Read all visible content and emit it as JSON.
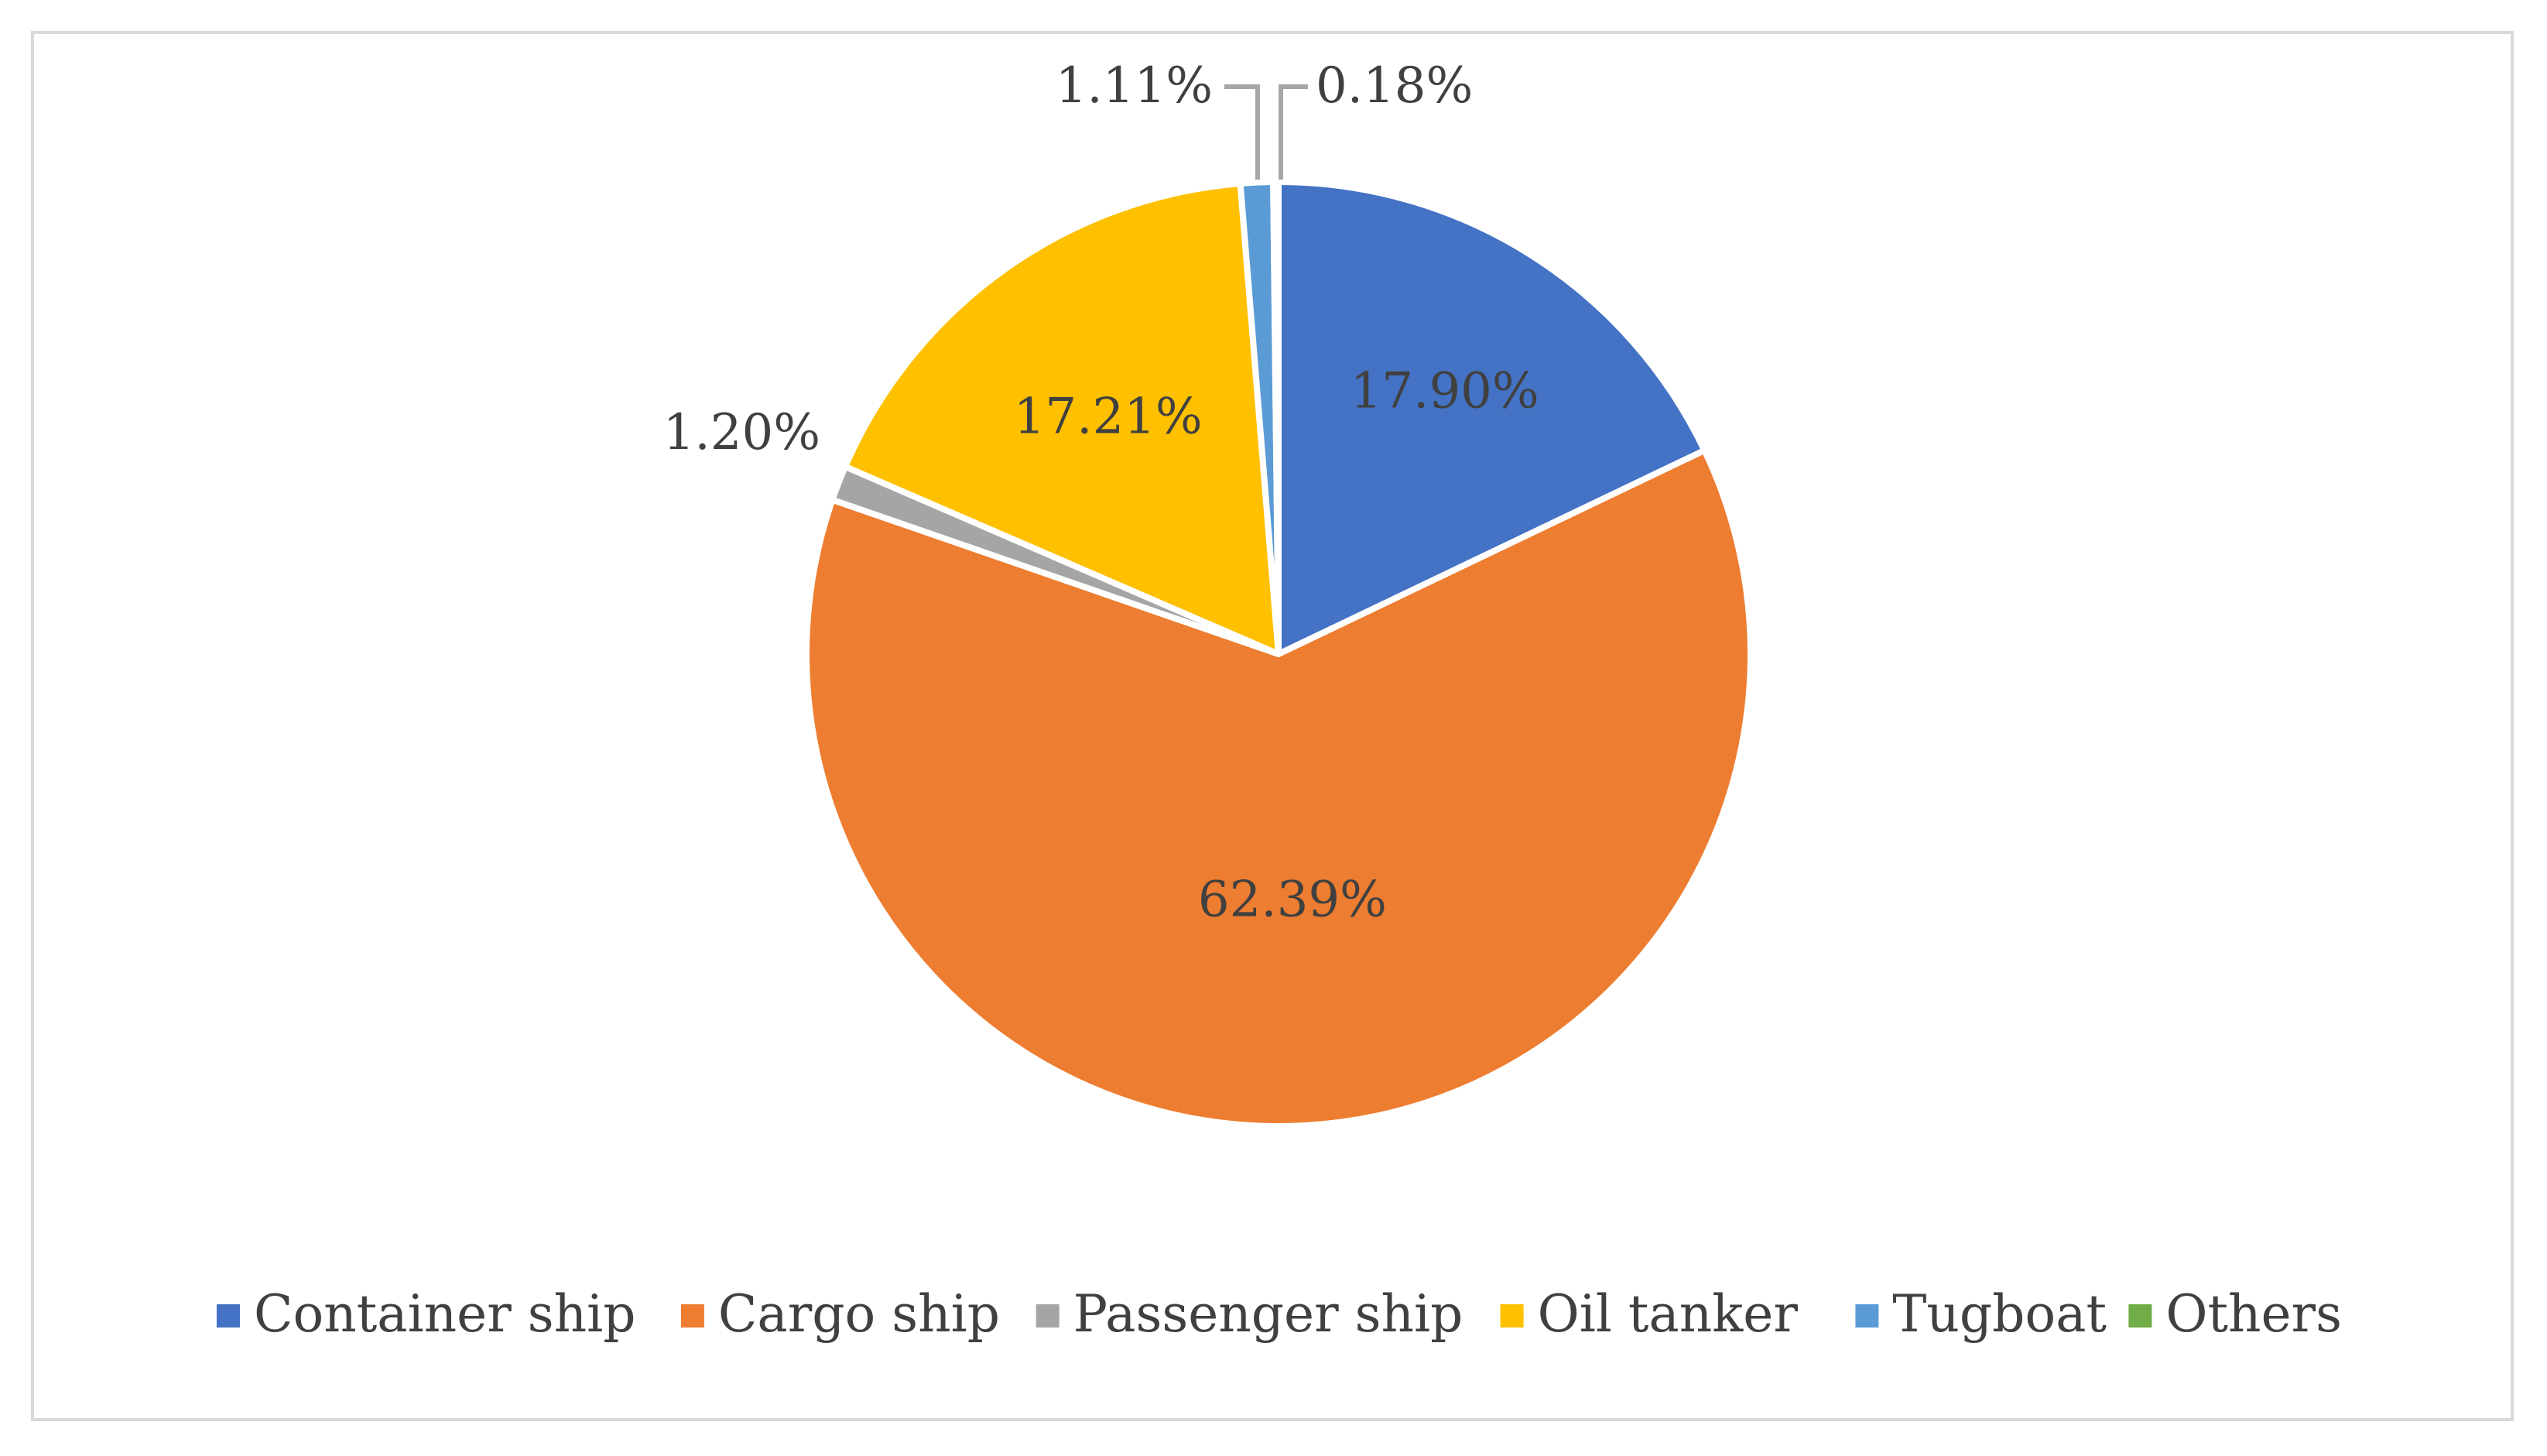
{
  "chart_data": {
    "type": "pie",
    "title": "",
    "start_angle_deg": 0,
    "direction": "clockwise",
    "legend_position": "bottom",
    "slices": [
      {
        "name": "Container ship",
        "value": 17.9,
        "label": "17.90%",
        "color": "#4472c4",
        "label_placement": "inside"
      },
      {
        "name": "Cargo ship",
        "value": 62.39,
        "label": "62.39%",
        "color": "#ed7d31",
        "label_placement": "inside"
      },
      {
        "name": "Passenger ship",
        "value": 1.2,
        "label": "1.20%",
        "color": "#a5a5a5",
        "label_placement": "outside"
      },
      {
        "name": "Oil tanker",
        "value": 17.21,
        "label": "17.21%",
        "color": "#ffc000",
        "label_placement": "inside"
      },
      {
        "name": "Tugboat",
        "value": 1.11,
        "label": "1.11%",
        "color": "#5b9bd5",
        "label_placement": "outside"
      },
      {
        "name": "Others",
        "value": 0.18,
        "label": "0.18%",
        "color": "#70ad47",
        "label_placement": "outside"
      }
    ]
  }
}
